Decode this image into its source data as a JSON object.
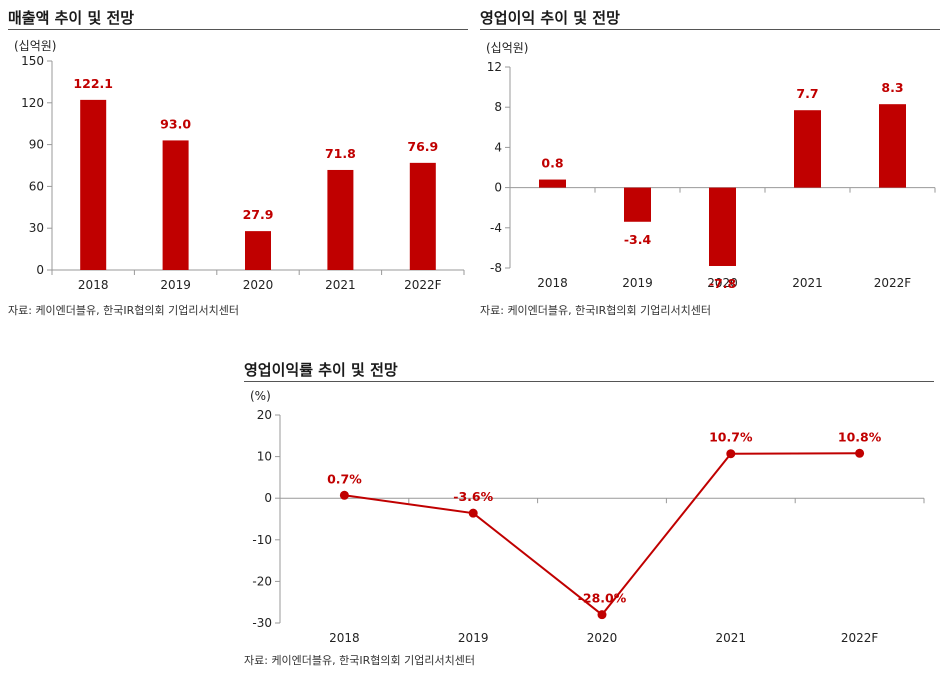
{
  "colors": {
    "bar": "#c00000",
    "line": "#c00000",
    "label": "#c00000",
    "axis": "#999999"
  },
  "chart_data": [
    {
      "type": "bar",
      "title": "매출액 추이 및 전망",
      "unit": "(십억원)",
      "categories": [
        "2018",
        "2019",
        "2020",
        "2021",
        "2022F"
      ],
      "values": [
        122.1,
        93.0,
        27.9,
        71.8,
        76.9
      ],
      "value_labels": [
        "122.1",
        "93.0",
        "27.9",
        "71.8",
        "76.9"
      ],
      "ylim": [
        0,
        150
      ],
      "yticks": [
        "150",
        "120",
        "90",
        "60",
        "30",
        "0"
      ],
      "ytick_values": [
        150,
        120,
        90,
        60,
        30,
        0
      ],
      "source": "자료: 케이엔더블유, 한국IR협의회 기업리서치센터",
      "xlabel": "",
      "ylabel": ""
    },
    {
      "type": "bar",
      "title": "영업이익 추이 및 전망",
      "unit": "(십억원)",
      "categories": [
        "2018",
        "2019",
        "2020",
        "2021",
        "2022F"
      ],
      "values": [
        0.8,
        -3.4,
        -7.8,
        7.7,
        8.3
      ],
      "value_labels": [
        "0.8",
        "-3.4",
        "-7.8",
        "7.7",
        "8.3"
      ],
      "ylim": [
        -8,
        12
      ],
      "yticks": [
        "12",
        "8",
        "4",
        "0",
        "-4",
        "-8"
      ],
      "ytick_values": [
        12,
        8,
        4,
        0,
        -4,
        -8
      ],
      "source": "자료: 케이엔더블유, 한국IR협의회 기업리서치센터",
      "xlabel": "",
      "ylabel": ""
    },
    {
      "type": "line",
      "title": "영업이익률 추이 및 전망",
      "unit": "(%)",
      "categories": [
        "2018",
        "2019",
        "2020",
        "2021",
        "2022F"
      ],
      "values": [
        0.7,
        -3.6,
        -28.0,
        10.7,
        10.8
      ],
      "value_labels": [
        "0.7%",
        "-3.6%",
        "-28.0%",
        "10.7%",
        "10.8%"
      ],
      "ylim": [
        -30,
        20
      ],
      "yticks": [
        "20",
        "10",
        "0",
        "-10",
        "-20",
        "-30"
      ],
      "ytick_values": [
        20,
        10,
        0,
        -10,
        -20,
        -30
      ],
      "source": "자료: 케이엔더블유, 한국IR협의회 기업리서치센터",
      "xlabel": "",
      "ylabel": ""
    }
  ]
}
